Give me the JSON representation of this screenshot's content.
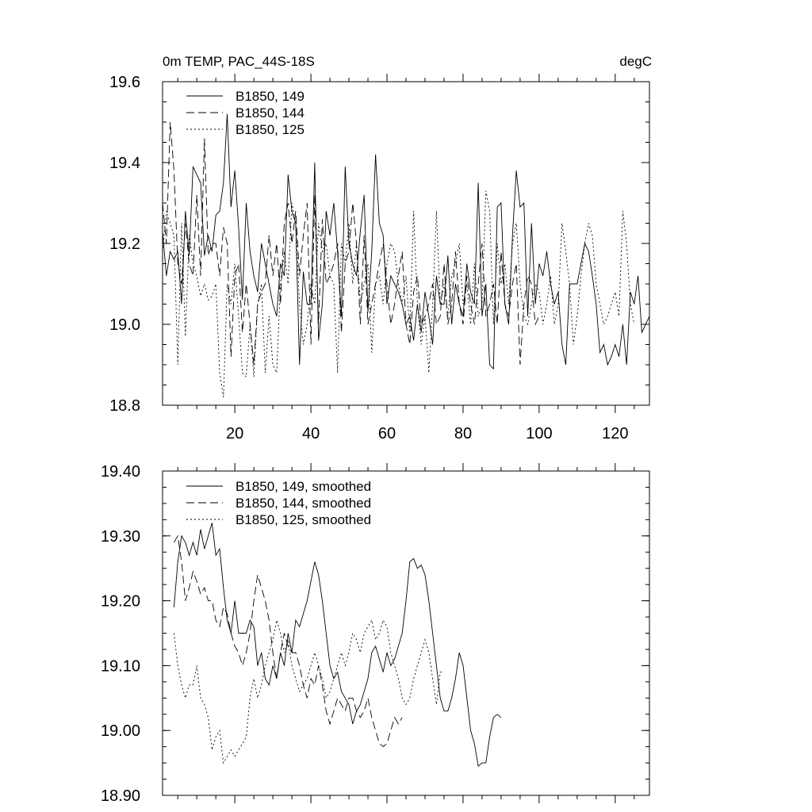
{
  "chart_data": [
    {
      "type": "line",
      "title_left": "0m TEMP, PAC_44S-18S",
      "title_right": "degC",
      "xlabel": "",
      "ylabel": "",
      "xlim": [
        1,
        129
      ],
      "ylim": [
        18.8,
        19.6
      ],
      "xticks": [
        20,
        40,
        60,
        80,
        100,
        120
      ],
      "xtick_labels": [
        "20",
        "40",
        "60",
        "80",
        "100",
        "120"
      ],
      "yticks": [
        18.8,
        19.0,
        19.2,
        19.4,
        19.6
      ],
      "ytick_labels": [
        "18.8",
        "19.0",
        "19.2",
        "19.4",
        "19.6"
      ],
      "legend_position": "top-left",
      "series": [
        {
          "name": "B1850, 149",
          "style": "solid",
          "x_start": 1,
          "values": [
            19.23,
            19.12,
            19.18,
            19.16,
            19.18,
            19.05,
            19.28,
            19.17,
            19.39,
            19.37,
            19.35,
            19.17,
            19.22,
            19.18,
            19.27,
            19.28,
            19.35,
            19.52,
            19.29,
            19.38,
            19.24,
            19.06,
            19.3,
            19.18,
            19.12,
            19.08,
            19.2,
            19.15,
            19.1,
            19.05,
            19.02,
            19.15,
            19.12,
            19.37,
            19.28,
            19.25,
            18.9,
            19.13,
            19.05,
            19.05,
            19.4,
            18.96,
            19.05,
            19.28,
            19.22,
            19.3,
            19.18,
            19.02,
            19.39,
            19.2,
            19.15,
            19.12,
            19.23,
            19.32,
            19.03,
            19.18,
            19.42,
            19.25,
            19.22,
            19.05,
            19.12,
            19.1,
            19.08,
            19.05,
            19.0,
            19.02,
            18.96,
            19.05,
            18.98,
            19.08,
            19.02,
            18.95,
            19.12,
            19.05,
            19.05,
            19.17,
            19.0,
            19.1,
            19.05,
            19.02,
            19.15,
            19.08,
            19.05,
            19.35,
            19.02,
            19.1,
            18.9,
            18.89,
            19.29,
            19.3,
            19.05,
            19.0,
            19.22,
            19.38,
            19.29,
            19.3,
            19.02,
            19.25,
            19.05,
            19.15,
            19.12,
            19.18,
            19.1,
            19.05,
            19.08,
            18.95,
            18.9,
            19.1,
            19.1,
            19.1,
            19.15,
            19.2,
            19.18,
            19.12,
            19.05,
            18.93,
            18.95,
            18.9,
            18.92,
            18.95,
            18.92,
            19.0,
            18.9,
            19.08,
            19.05,
            19.12,
            18.98,
            19.0,
            19.02
          ]
        },
        {
          "name": "B1850, 144",
          "style": "dashed",
          "x_start": 1,
          "values": [
            19.3,
            19.2,
            19.5,
            19.38,
            19.15,
            19.1,
            19.25,
            19.15,
            19.12,
            19.32,
            19.12,
            19.46,
            19.17,
            19.2,
            19.2,
            19.12,
            19.24,
            19.2,
            18.92,
            19.12,
            19.15,
            18.98,
            19.1,
            19.0,
            18.9,
            19.05,
            19.08,
            19.1,
            19.22,
            19.12,
            19.2,
            19.05,
            19.25,
            19.3,
            19.2,
            19.28,
            19.12,
            19.22,
            19.3,
            18.95,
            19.32,
            19.0,
            19.26,
            19.1,
            19.12,
            19.15,
            19.2,
            18.98,
            19.15,
            19.18,
            19.3,
            19.2,
            19.0,
            19.22,
            19.0,
            19.05,
            19.1,
            19.15,
            19.2,
            19.1,
            19.0,
            19.05,
            19.12,
            19.18,
            19.0,
            18.95,
            19.08,
            19.12,
            19.0,
            19.02,
            19.05,
            19.1,
            19.0,
            19.02,
            19.15,
            19.0,
            19.05,
            19.18,
            19.05,
            19.0,
            19.12,
            19.05,
            19.0,
            19.1,
            19.2,
            19.02,
            19.05,
            19.1,
            19.0,
            19.18,
            19.05,
            19.02,
            19.1,
            19.15,
            18.9,
            19.05,
            19.12,
            19.1,
            19.0,
            19.02
          ]
        },
        {
          "name": "B1850, 125",
          "style": "dotted",
          "x_start": 1,
          "values": [
            19.18,
            19.28,
            19.25,
            19.22,
            18.9,
            19.25,
            18.97,
            19.22,
            19.15,
            19.12,
            19.07,
            19.1,
            19.06,
            19.07,
            19.1,
            18.88,
            18.82,
            19.1,
            19.05,
            19.15,
            19.02,
            18.88,
            18.87,
            19.0,
            18.87,
            19.05,
            19.1,
            18.88,
            19.02,
            18.9,
            18.88,
            19.1,
            19.18,
            19.1,
            19.3,
            19.25,
            19.05,
            18.95,
            19.0,
            19.1,
            19.05,
            19.25,
            19.18,
            19.2,
            19.12,
            19.1,
            18.88,
            19.2,
            19.15,
            19.25,
            19.1,
            19.2,
            19.05,
            19.1,
            19.15,
            18.93,
            19.1,
            19.12,
            19.05,
            19.15,
            19.2,
            19.18,
            19.1,
            19.05,
            19.12,
            18.98,
            19.28,
            19.05,
            18.95,
            19.02,
            18.88,
            19.05,
            19.28,
            19.05,
            19.1,
            19.02,
            19.12,
            19.15,
            19.2,
            19.05,
            19.1,
            19.0,
            19.15,
            19.02,
            19.05,
            19.33,
            19.28,
            19.0,
            19.2,
            19.1,
            19.15,
            19.05,
            19.2,
            19.25,
            19.1,
            19.02,
            19.0,
            19.05,
            19.1,
            19.08,
            19.0,
            19.05,
            19.12,
            19.0,
            19.05,
            19.25,
            19.18,
            19.1,
            18.95,
            19.02,
            19.12,
            19.2,
            19.25,
            19.22,
            19.1,
            19.05,
            19.0,
            19.02,
            19.05,
            19.08,
            19.02,
            19.28,
            19.2,
            19.05,
            19.0
          ]
        }
      ]
    },
    {
      "type": "line",
      "title_left": "",
      "title_right": "",
      "xlabel": "",
      "ylabel": "",
      "xlim": [
        1,
        129
      ],
      "ylim": [
        18.9,
        19.4
      ],
      "xticks": [
        20,
        40,
        60,
        80,
        100,
        120
      ],
      "xtick_labels": [],
      "yticks": [
        18.9,
        19.0,
        19.1,
        19.2,
        19.3,
        19.4
      ],
      "ytick_labels": [
        "18.90",
        "19.00",
        "19.10",
        "19.20",
        "19.30",
        "19.40"
      ],
      "legend_position": "top-left",
      "series": [
        {
          "name": "B1850, 149, smoothed",
          "style": "solid",
          "x_start": 4,
          "values": [
            19.19,
            19.26,
            19.3,
            19.29,
            19.27,
            19.29,
            19.27,
            19.31,
            19.28,
            19.3,
            19.32,
            19.27,
            19.28,
            19.22,
            19.17,
            19.15,
            19.2,
            19.15,
            19.15,
            19.15,
            19.17,
            19.16,
            19.1,
            19.12,
            19.08,
            19.07,
            19.1,
            19.08,
            19.12,
            19.1,
            19.15,
            19.12,
            19.17,
            19.16,
            19.18,
            19.2,
            19.23,
            19.26,
            19.24,
            19.2,
            19.15,
            19.1,
            19.08,
            19.09,
            19.06,
            19.05,
            19.04,
            19.01,
            19.03,
            19.04,
            19.06,
            19.08,
            19.12,
            19.13,
            19.11,
            19.09,
            19.12,
            19.1,
            19.11,
            19.13,
            19.15,
            19.2,
            19.26,
            19.265,
            19.25,
            19.255,
            19.24,
            19.2,
            19.15,
            19.1,
            19.05,
            19.03,
            19.03,
            19.05,
            19.08,
            19.12,
            19.1,
            19.05,
            19.0,
            18.98,
            18.945,
            18.95,
            18.95,
            18.99,
            19.02,
            19.025,
            19.02
          ]
        },
        {
          "name": "B1850, 144, smoothed",
          "style": "dashed",
          "x_start": 4,
          "values": [
            19.29,
            19.3,
            19.26,
            19.2,
            19.22,
            19.245,
            19.23,
            19.21,
            19.22,
            19.2,
            19.2,
            19.17,
            19.16,
            19.19,
            19.18,
            19.15,
            19.13,
            19.12,
            19.1,
            19.12,
            19.15,
            19.2,
            19.24,
            19.22,
            19.2,
            19.17,
            19.12,
            19.08,
            19.12,
            19.15,
            19.13,
            19.12,
            19.12,
            19.1,
            19.07,
            19.05,
            19.08,
            19.07,
            19.1,
            19.07,
            19.03,
            19.01,
            19.03,
            19.05,
            19.04,
            19.03,
            19.05,
            19.05,
            19.03,
            19.02,
            19.03,
            19.05,
            19.02,
            19.0,
            18.98,
            18.975,
            18.98,
            19.0,
            19.02,
            19.01,
            19.02
          ]
        },
        {
          "name": "B1850, 125, smoothed",
          "style": "dotted",
          "x_start": 4,
          "values": [
            19.15,
            19.1,
            19.07,
            19.05,
            19.07,
            19.07,
            19.1,
            19.05,
            19.04,
            19.02,
            18.97,
            18.99,
            19.0,
            18.95,
            18.96,
            18.97,
            18.96,
            18.97,
            18.98,
            18.99,
            19.05,
            19.08,
            19.05,
            19.07,
            19.1,
            19.12,
            19.14,
            19.17,
            19.15,
            19.12,
            19.14,
            19.1,
            19.08,
            19.06,
            19.07,
            19.08,
            19.1,
            19.12,
            19.1,
            19.08,
            19.05,
            19.06,
            19.08,
            19.1,
            19.12,
            19.1,
            19.12,
            19.15,
            19.14,
            19.12,
            19.15,
            19.16,
            19.17,
            19.14,
            19.15,
            19.17,
            19.16,
            19.12,
            19.1,
            19.08,
            19.05,
            19.04,
            19.05,
            19.08,
            19.1,
            19.12,
            19.14,
            19.12,
            19.08,
            19.04,
            19.09,
            19.09
          ]
        }
      ]
    }
  ]
}
